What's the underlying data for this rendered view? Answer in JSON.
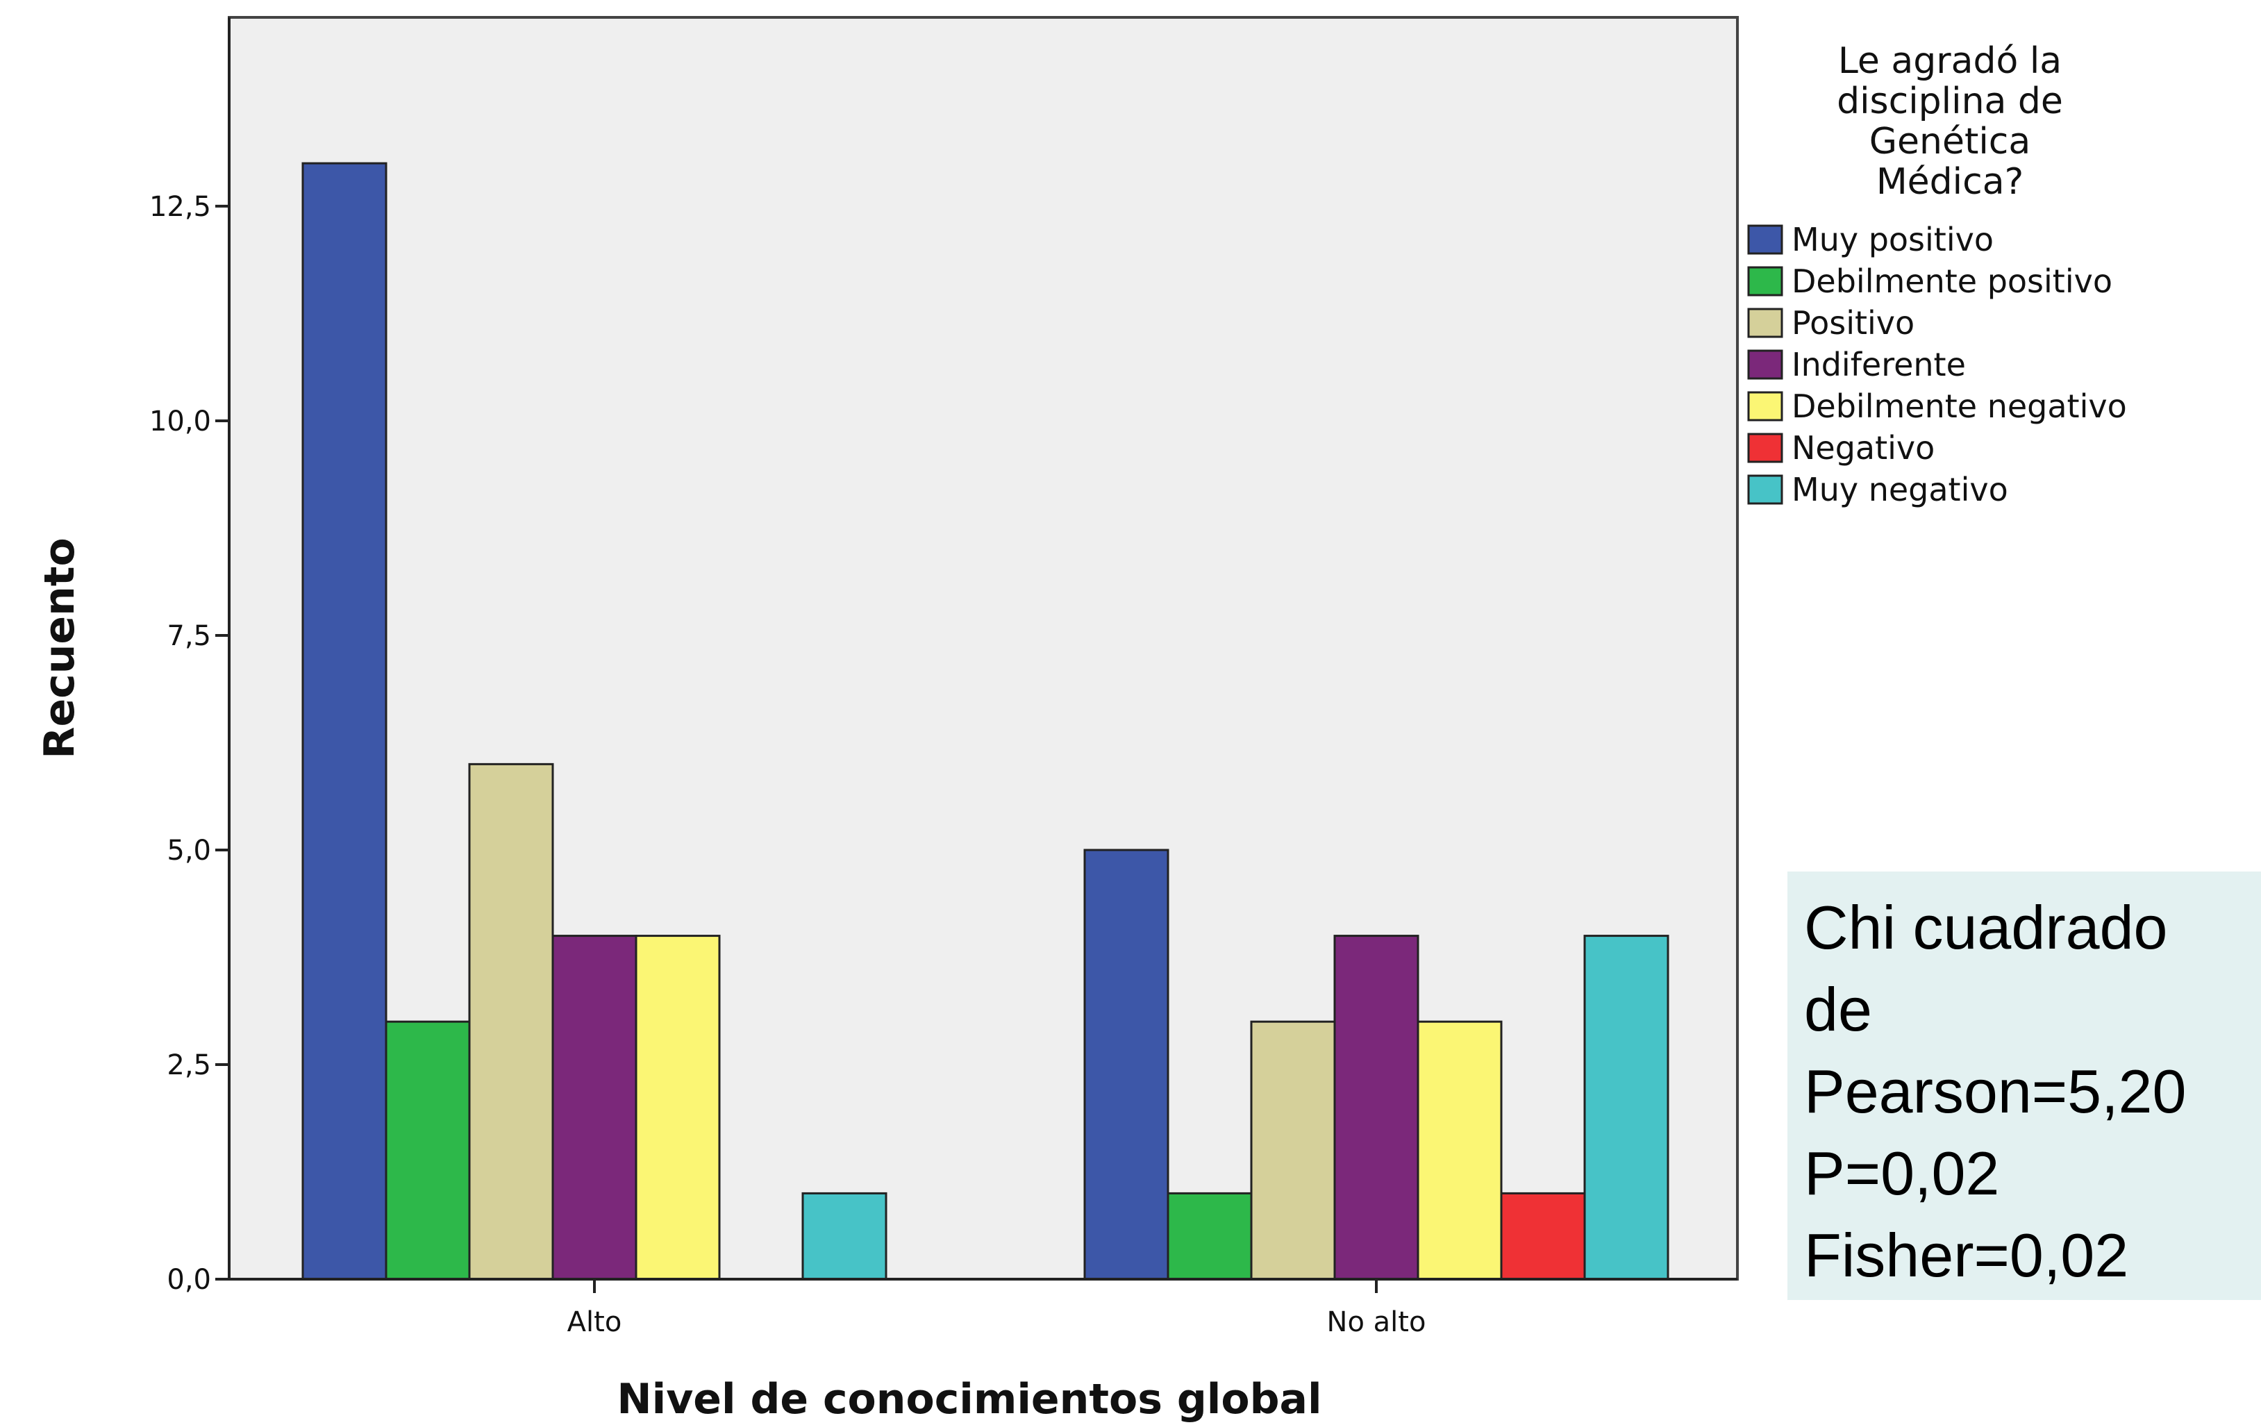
{
  "chart_data": {
    "type": "bar",
    "xlabel": "Nivel de conocimientos global",
    "ylabel": "Recuento",
    "ylim": [
      0,
      14.7
    ],
    "yticks": [
      "0,0",
      "2,5",
      "5,0",
      "7,5",
      "10,0",
      "12,5"
    ],
    "ytick_values": [
      0,
      2.5,
      5,
      7.5,
      10,
      12.5
    ],
    "categories": [
      "Alto",
      "No alto"
    ],
    "legend_title": [
      "Le agradó la",
      "disciplina de",
      "Genética",
      "Médica?"
    ],
    "legend_position": "top-right",
    "grid": false,
    "series": [
      {
        "name": "Muy positivo",
        "color": "#3d57a8",
        "values": [
          13,
          5
        ]
      },
      {
        "name": "Debilmente positivo",
        "color": "#2db84a",
        "values": [
          3,
          1
        ]
      },
      {
        "name": "Positivo",
        "color": "#d5d09a",
        "values": [
          6,
          3
        ]
      },
      {
        "name": "Indiferente",
        "color": "#7b287a",
        "values": [
          4,
          4
        ]
      },
      {
        "name": "Debilmente negativo",
        "color": "#fbf674",
        "values": [
          4,
          3
        ]
      },
      {
        "name": "Negativo",
        "color": "#ef3135",
        "values": [
          0,
          1
        ]
      },
      {
        "name": "Muy negativo",
        "color": "#47c3c7",
        "values": [
          1,
          4
        ]
      }
    ],
    "plot_background": "#efefef"
  },
  "stats": {
    "lines": [
      "Chi cuadrado",
      "de",
      "Pearson=5,20",
      "P=0,02",
      "Fisher=0,02"
    ]
  }
}
